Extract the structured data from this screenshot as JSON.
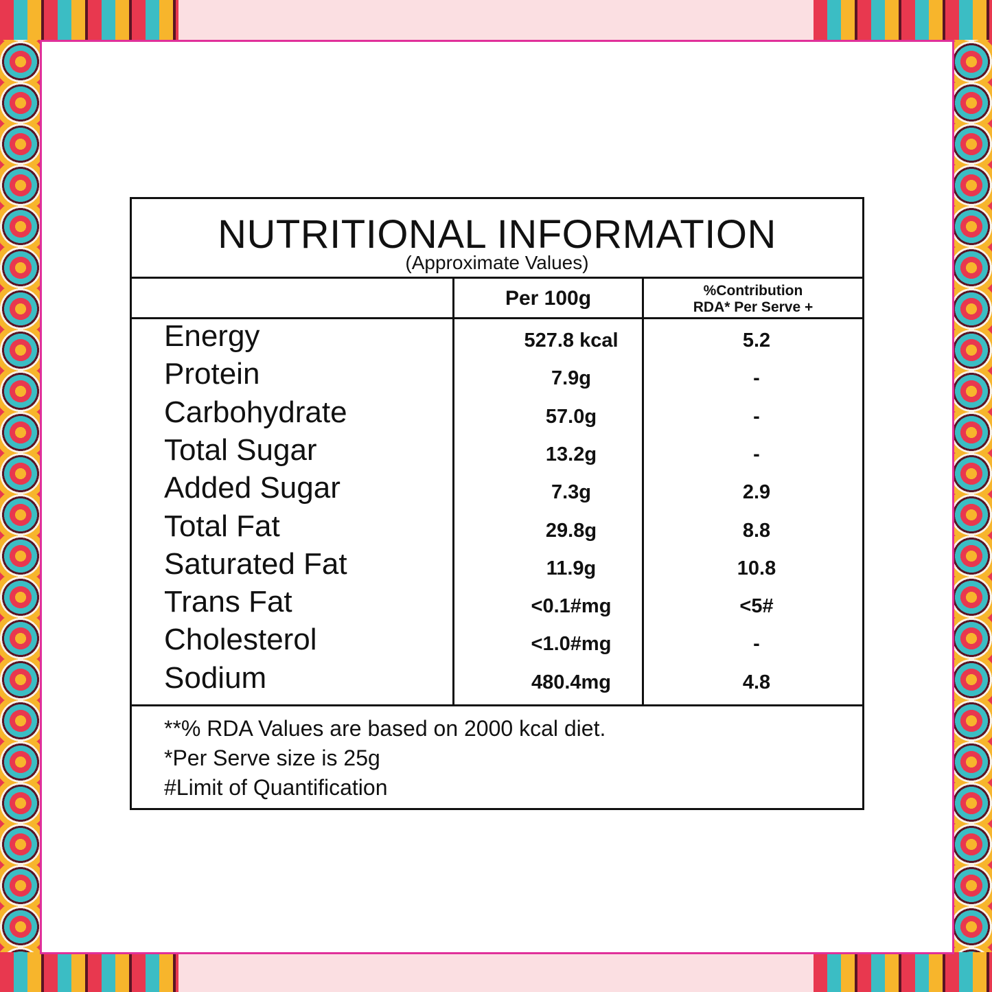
{
  "header": {
    "title": "NUTRITIONAL INFORMATION",
    "subtitle": "(Approximate Values)"
  },
  "table": {
    "columns": [
      "Per 100g",
      "%Contribution",
      "RDA* Per Serve +"
    ],
    "rows": [
      [
        "Energy",
        "527.8 kcal",
        "5.2"
      ],
      [
        "Protein",
        "7.9g",
        "-"
      ],
      [
        "Carbohydrate",
        "57.0g",
        "-"
      ],
      [
        "Total Sugar",
        "13.2g",
        "-"
      ],
      [
        "Added Sugar",
        "7.3g",
        "2.9"
      ],
      [
        "Total Fat",
        "29.8g",
        "8.8"
      ],
      [
        "Saturated Fat",
        "11.9g",
        "10.8"
      ],
      [
        "Trans Fat",
        "<0.1#mg",
        "<5#"
      ],
      [
        "Cholesterol",
        "<1.0#mg",
        "-"
      ],
      [
        "Sodium",
        "480.4mg",
        "4.8"
      ]
    ]
  },
  "footnotes": [
    "**% RDA Values are based on 2000 kcal diet.",
    "*Per Serve size is 25g",
    "#Limit of Quantification"
  ]
}
